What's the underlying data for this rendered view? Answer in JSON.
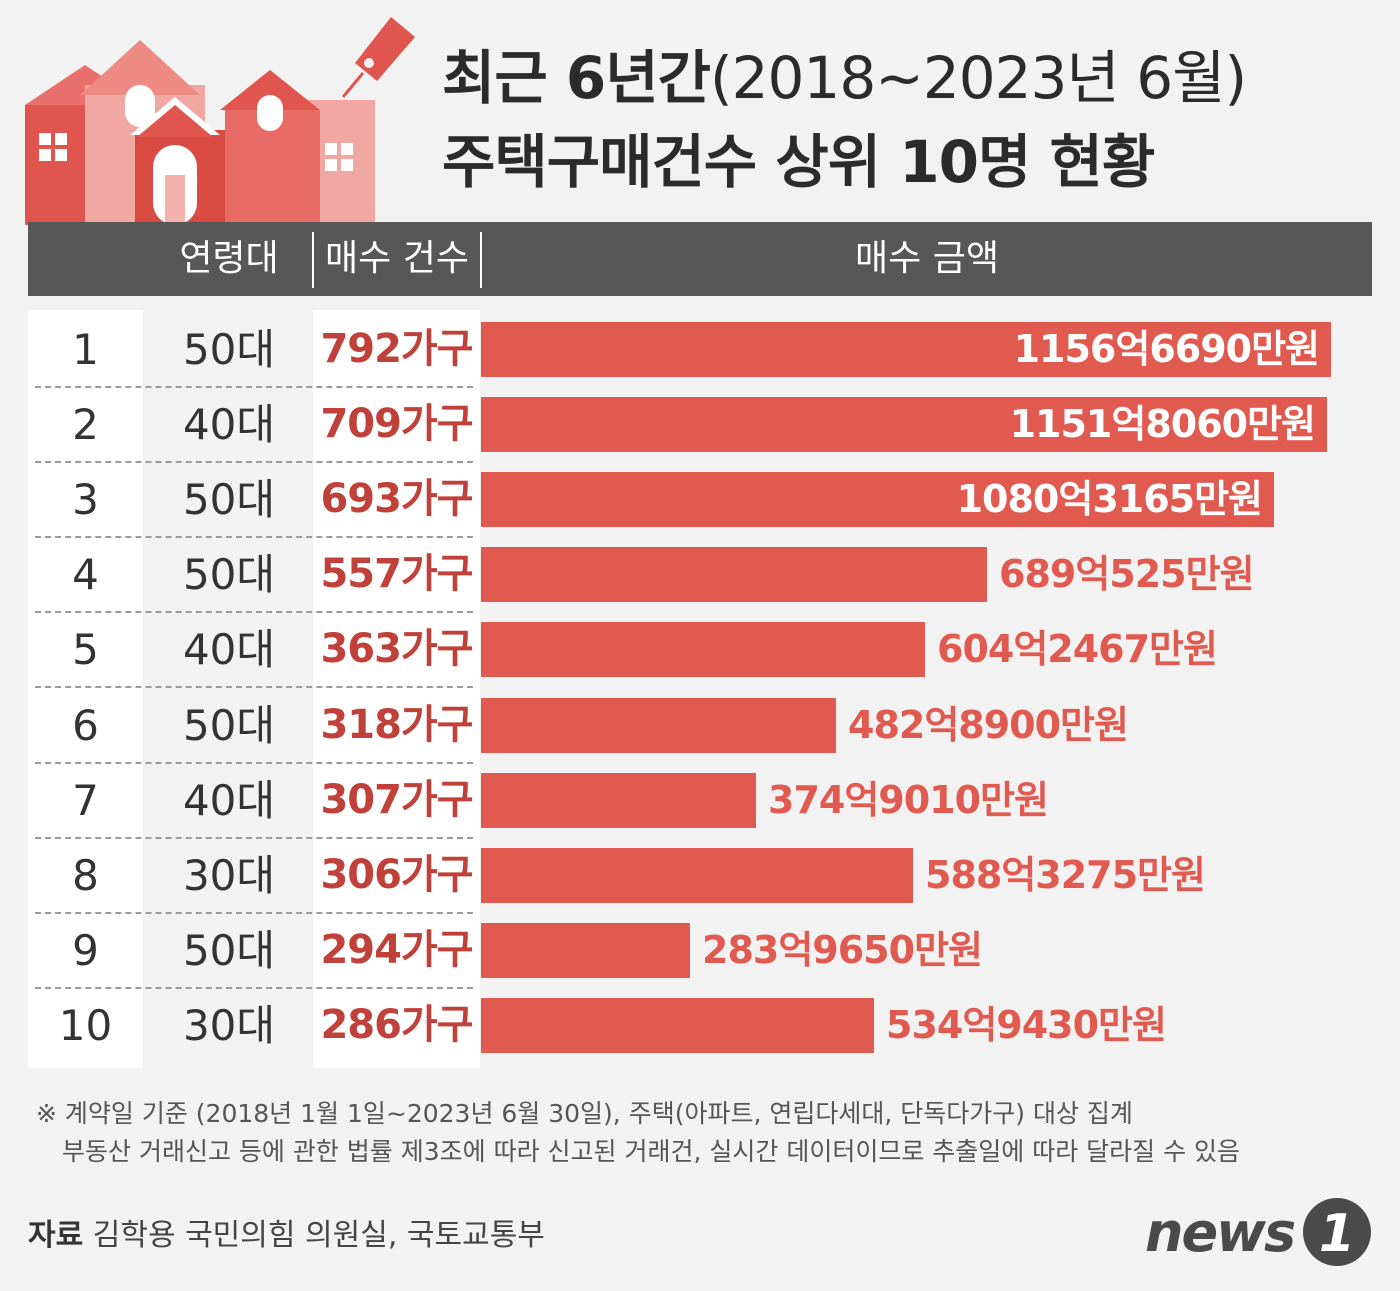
{
  "title": {
    "line1_bold": "최근 6년간",
    "line1_light": "(2018~2023년 6월)",
    "line2": "주택구매건수 상위 10명 현황"
  },
  "header": {
    "age": "연령대",
    "count": "매수 건수",
    "amount": "매수 금액"
  },
  "chart_data": {
    "type": "bar",
    "title": "최근 6년간(2018~2023년 6월) 주택구매건수 상위 10명 현황",
    "columns": [
      "연령대",
      "매수 건수",
      "매수 금액"
    ],
    "categories": [
      "1",
      "2",
      "3",
      "4",
      "5",
      "6",
      "7",
      "8",
      "9",
      "10"
    ],
    "rows": [
      {
        "rank": "1",
        "age": "50대",
        "count": "792가구",
        "amount_label": "1156억6690만원",
        "value": 1156.669
      },
      {
        "rank": "2",
        "age": "40대",
        "count": "709가구",
        "amount_label": "1151억8060만원",
        "value": 1151.806
      },
      {
        "rank": "3",
        "age": "50대",
        "count": "693가구",
        "amount_label": "1080억3165만원",
        "value": 1080.3165
      },
      {
        "rank": "4",
        "age": "50대",
        "count": "557가구",
        "amount_label": "689억525만원",
        "value": 689.0525
      },
      {
        "rank": "5",
        "age": "40대",
        "count": "363가구",
        "amount_label": "604억2467만원",
        "value": 604.2467
      },
      {
        "rank": "6",
        "age": "50대",
        "count": "318가구",
        "amount_label": "482억8900만원",
        "value": 482.89
      },
      {
        "rank": "7",
        "age": "40대",
        "count": "307가구",
        "amount_label": "374억9010만원",
        "value": 374.901
      },
      {
        "rank": "8",
        "age": "30대",
        "count": "306가구",
        "amount_label": "588억3275만원",
        "value": 588.3275
      },
      {
        "rank": "9",
        "age": "50대",
        "count": "294가구",
        "amount_label": "283억9650만원",
        "value": 283.965
      },
      {
        "rank": "10",
        "age": "30대",
        "count": "286가구",
        "amount_label": "534억9430만원",
        "value": 534.943
      }
    ],
    "xlim": [
      0,
      1160
    ],
    "unit": "억원",
    "bar_color": "#e05a50"
  },
  "notes": {
    "line1": "※ 계약일 기준 (2018년 1월 1일~2023년 6월 30일), 주택(아파트, 연립다세대, 단독다가구) 대상 집계",
    "line2": "부동산 거래신고 등에 관한 법률 제3조에 따라 신고된 거래건, 실시간 데이터이므로 추출일에 따라 달라질 수 있음"
  },
  "source": {
    "label": "자료",
    "text": "김학용 국민의힘 의원실, 국토교통부"
  },
  "logo": {
    "text": "news",
    "mark": "1"
  },
  "colors": {
    "accent": "#e05a50",
    "count_text": "#c0403a",
    "header_bg": "#575757",
    "background": "#f2f2f2"
  }
}
